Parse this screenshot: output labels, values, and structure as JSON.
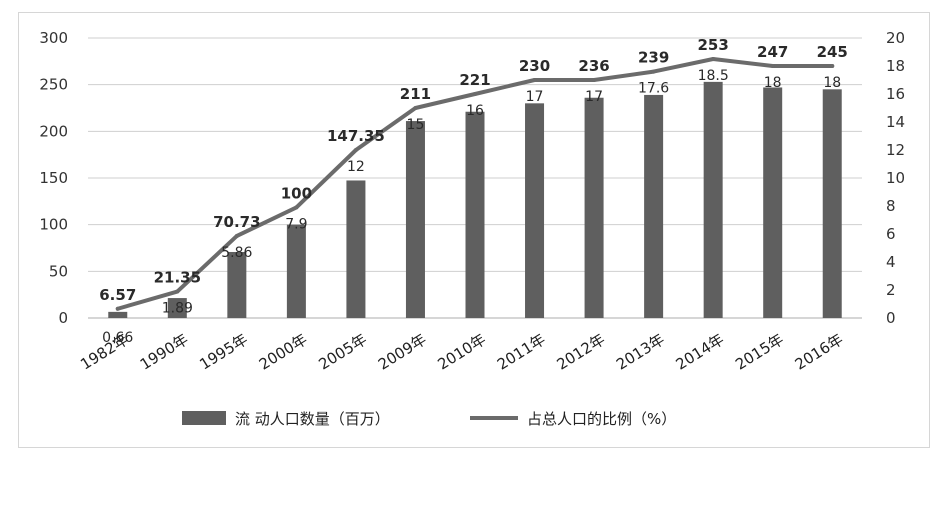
{
  "chart_data": {
    "type": "bar",
    "categories": [
      "1982年",
      "1990年",
      "1995年",
      "2000年",
      "2005年",
      "2009年",
      "2010年",
      "2011年",
      "2012年",
      "2013年",
      "2014年",
      "2015年",
      "2016年"
    ],
    "series": [
      {
        "name": "流 动人口数量（百万）",
        "chart_type": "bar",
        "axis": "left",
        "values": [
          6.57,
          21.35,
          70.73,
          100,
          147.35,
          211,
          221,
          230,
          236,
          239,
          253,
          247,
          245
        ],
        "labels": [
          "6.57",
          "21.35",
          "70.73",
          "100",
          "147.35",
          "211",
          "221",
          "230",
          "236",
          "239",
          "253",
          "247",
          "245"
        ],
        "color": "#5f5f5f"
      },
      {
        "name": "占总人口的比例（%）",
        "chart_type": "line",
        "axis": "right",
        "values": [
          0.66,
          1.89,
          5.86,
          7.9,
          12,
          15,
          16,
          17,
          17,
          17.6,
          18.5,
          18,
          18
        ],
        "labels": [
          "0.66",
          "1.89",
          "5.86",
          "7.9",
          "12",
          "15",
          "16",
          "17",
          "17",
          "17.6",
          "18.5",
          "18",
          "18"
        ],
        "color": "#6b6b6b"
      }
    ],
    "left_axis": {
      "ylim": [
        0,
        300
      ],
      "ticks": [
        "0",
        "50",
        "100",
        "150",
        "200",
        "250",
        "300"
      ],
      "tick_values": [
        0,
        50,
        100,
        150,
        200,
        250,
        300
      ]
    },
    "right_axis": {
      "ylim": [
        0,
        20
      ],
      "ticks": [
        "0",
        "2",
        "4",
        "6",
        "8",
        "10",
        "12",
        "14",
        "16",
        "18",
        "20"
      ],
      "tick_values": [
        0,
        2,
        4,
        6,
        8,
        10,
        12,
        14,
        16,
        18,
        20
      ]
    },
    "grid": "horizontal",
    "legend_position": "bottom",
    "title": "",
    "xlabel": "",
    "ylabel": ""
  }
}
